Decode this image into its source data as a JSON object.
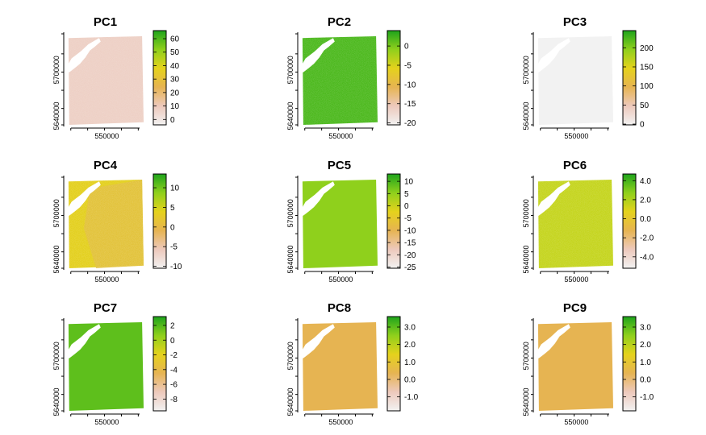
{
  "chart_data": [
    {
      "type": "heatmap",
      "title": "PC1",
      "xticks": [
        "550000"
      ],
      "yticks": [
        "5640000",
        "5700000"
      ],
      "legend_ticks": [
        "60",
        "50",
        "40",
        "30",
        "20",
        "10",
        "0"
      ],
      "legend_range": [
        -4,
        66
      ],
      "fill_color": "#edcfc4",
      "texture": "speckled"
    },
    {
      "type": "heatmap",
      "title": "PC2",
      "xticks": [
        "550000"
      ],
      "yticks": [
        "5640000",
        "5700000"
      ],
      "legend_ticks": [
        "0",
        "-5",
        "-10",
        "-15",
        "-20"
      ],
      "legend_range": [
        -20.5,
        4
      ],
      "fill_color": "#4bb81c",
      "texture": "speckled"
    },
    {
      "type": "heatmap",
      "title": "PC3",
      "xticks": [
        "550000"
      ],
      "yticks": [
        "5640000",
        "5700000"
      ],
      "legend_ticks": [
        "200",
        "150",
        "100",
        "50",
        "0"
      ],
      "legend_range": [
        -2,
        245
      ],
      "fill_color": "#f2f2f2",
      "texture": "flat"
    },
    {
      "type": "heatmap",
      "title": "PC4",
      "xticks": [
        "550000"
      ],
      "yticks": [
        "5640000",
        "5700000"
      ],
      "legend_ticks": [
        "10",
        "5",
        "0",
        "-5",
        "-10"
      ],
      "legend_range": [
        -10.5,
        13.5
      ],
      "fill_color": "#e3cf1c",
      "fill_color_2": "#e2bf3e",
      "texture": "two-tone"
    },
    {
      "type": "heatmap",
      "title": "PC5",
      "xticks": [
        "550000"
      ],
      "yticks": [
        "5640000",
        "5700000"
      ],
      "legend_ticks": [
        "10",
        "5",
        "0",
        "-5",
        "-10",
        "-15",
        "-20",
        "-25"
      ],
      "legend_range": [
        -25.5,
        13
      ],
      "fill_color": "#8fd01c",
      "texture": "flat"
    },
    {
      "type": "heatmap",
      "title": "PC6",
      "xticks": [
        "550000"
      ],
      "yticks": [
        "5640000",
        "5700000"
      ],
      "legend_ticks": [
        "4.0",
        "2.0",
        "0.0",
        "-2.0",
        "-4.0"
      ],
      "legend_range": [
        -5.2,
        4.7
      ],
      "fill_color": "#c4d41c",
      "texture": "speckled"
    },
    {
      "type": "heatmap",
      "title": "PC7",
      "xticks": [
        "550000"
      ],
      "yticks": [
        "5640000",
        "5700000"
      ],
      "legend_ticks": [
        "2",
        "0",
        "-2",
        "-4",
        "-6",
        "-8"
      ],
      "legend_range": [
        -9.6,
        3.2
      ],
      "fill_color": "#5ebf1c",
      "texture": "flat"
    },
    {
      "type": "heatmap",
      "title": "PC8",
      "xticks": [
        "550000"
      ],
      "yticks": [
        "5640000",
        "5700000"
      ],
      "legend_ticks": [
        "3.0",
        "2.0",
        "1.0",
        "0.0",
        "-1.0"
      ],
      "legend_range": [
        -1.8,
        3.6
      ],
      "fill_color": "#e6b452",
      "texture": "flat"
    },
    {
      "type": "heatmap",
      "title": "PC9",
      "xticks": [
        "550000"
      ],
      "yticks": [
        "5640000",
        "5700000"
      ],
      "legend_ticks": [
        "3.0",
        "2.0",
        "1.0",
        "0.0",
        "-1.0"
      ],
      "legend_range": [
        -1.8,
        3.6
      ],
      "fill_color": "#e6b452",
      "texture": "flat"
    }
  ],
  "palette": [
    "#f2f2f2",
    "#edc9bc",
    "#e6b452",
    "#e5d21c",
    "#8fd01c",
    "#1ea41c"
  ]
}
